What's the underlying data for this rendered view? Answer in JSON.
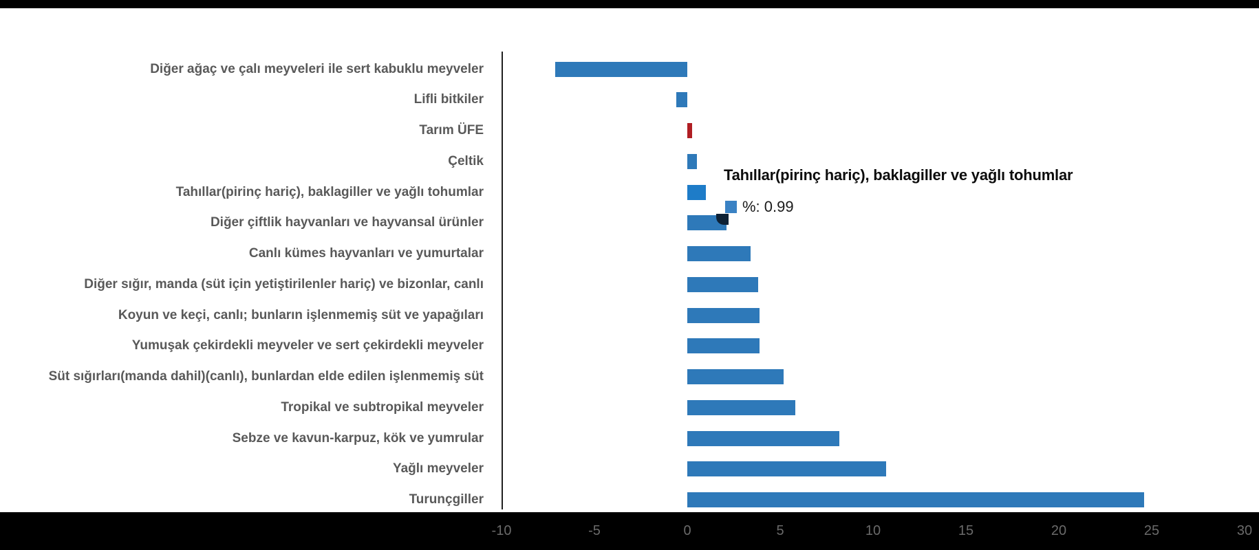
{
  "chart_data": {
    "type": "bar",
    "orientation": "horizontal",
    "title": "",
    "xlabel": "",
    "ylabel": "",
    "xlim": [
      -10,
      30
    ],
    "grid": false,
    "legend_position": "none",
    "x_ticks": [
      -10,
      -5,
      0,
      5,
      10,
      15,
      20,
      25,
      30
    ],
    "categories": [
      "Diğer ağaç ve çalı meyveleri ile sert kabuklu meyveler",
      "Lifli bitkiler",
      "Tarım ÜFE",
      "Çeltik",
      "Tahıllar(pirinç hariç), baklagiller ve yağlı tohumlar",
      "Diğer çiftlik hayvanları ve hayvansal ürünler",
      "Canlı kümes hayvanları ve yumurtalar",
      "Diğer sığır, manda (süt için yetiştirilenler hariç) ve bizonlar, canlı",
      "Koyun ve keçi, canlı; bunların işlenmemiş süt ve yapağıları",
      "Yumuşak çekirdekli meyveler ve sert çekirdekli meyveler",
      "Süt sığırları(manda dahil)(canlı), bunlardan elde edilen işlenmemiş süt",
      "Tropikal ve subtropikal meyveler",
      "Sebze ve kavun-karpuz, kök ve yumrular",
      "Yağlı meyveler",
      "Turunçgiller"
    ],
    "values": [
      -7.1,
      -0.6,
      0.25,
      0.5,
      0.99,
      2.1,
      3.4,
      3.8,
      3.9,
      3.9,
      5.2,
      5.8,
      8.2,
      10.7,
      24.6
    ],
    "highlighted_index": 4,
    "red_index": 2
  },
  "axis": {
    "tick_labels": [
      "-10",
      "-5",
      "0",
      "5",
      "10",
      "15",
      "20",
      "25",
      "30"
    ]
  },
  "tooltip": {
    "title": "Tahıllar(pirinç hariç), baklagiller ve yağlı tohumlar",
    "value_text": "%: 0.99",
    "swatch_color": "#3A82C4"
  },
  "colors": {
    "bar_blue": "#2E79B9",
    "bar_blue_hover": "#1E7CC8",
    "bar_red": "#B01E23",
    "label_gray": "#595959",
    "tick_gray": "#6A6A6A",
    "axis_line": "#1F1F1F",
    "panel_bg": "#FFFFFF",
    "outer_bg": "#000000",
    "cursor_blob": "#0D2135"
  }
}
